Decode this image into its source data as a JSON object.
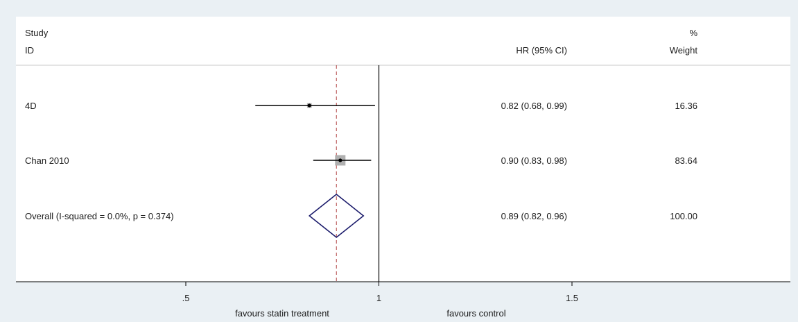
{
  "chart_data": {
    "type": "forest",
    "headers": {
      "study_top": "Study",
      "study_bottom": "ID",
      "effect": "HR (95% CI)",
      "weight_top": "%",
      "weight_bottom": "Weight"
    },
    "studies": [
      {
        "label": "4D",
        "hr": 0.82,
        "lo": 0.68,
        "hi": 0.99,
        "ci_text": "0.82 (0.68, 0.99)",
        "weight": 16.36,
        "weight_text": "16.36"
      },
      {
        "label": "Chan 2010",
        "hr": 0.9,
        "lo": 0.83,
        "hi": 0.98,
        "ci_text": "0.90 (0.83, 0.98)",
        "weight": 83.64,
        "weight_text": "83.64"
      }
    ],
    "overall": {
      "label": "Overall  (I-squared = 0.0%, p = 0.374)",
      "hr": 0.89,
      "lo": 0.82,
      "hi": 0.96,
      "ci_text": "0.89 (0.82, 0.96)",
      "weight_text": "100.00"
    },
    "null_line": 1,
    "x_ticks": [
      {
        "value": 0.5,
        "label": ".5"
      },
      {
        "value": 1,
        "label": "1"
      },
      {
        "value": 1.5,
        "label": "1.5"
      }
    ],
    "x_annotations": {
      "left": "favours statin treatment",
      "right": "favours control"
    },
    "colors": {
      "diamond": "#1b1b6b",
      "overall_line": "#b04040",
      "ci_line": "#000000",
      "weight_box": "#b0b0b0"
    }
  }
}
